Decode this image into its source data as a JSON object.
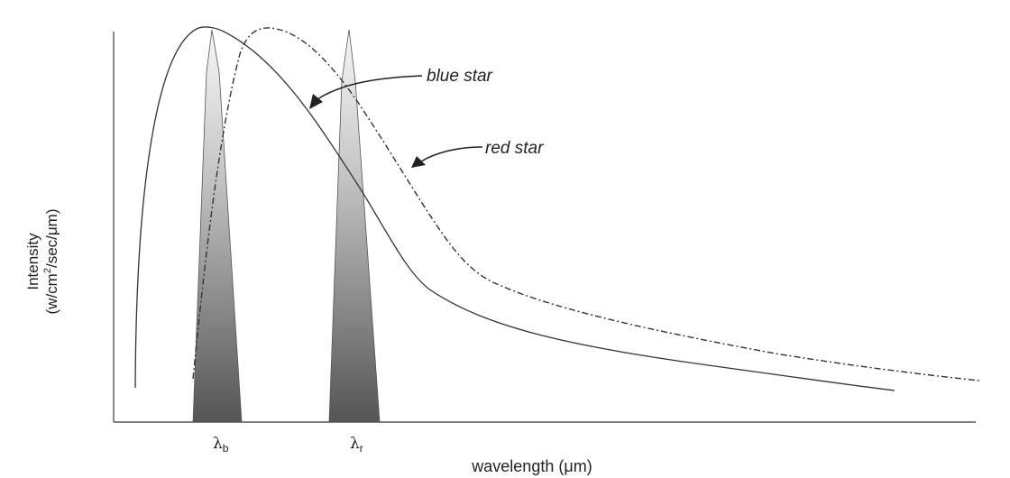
{
  "chart_data": {
    "type": "line",
    "title": "",
    "xlabel": "wavelength (μm)",
    "ylabel": {
      "line1": "Intensity",
      "line2_prefix": "(w/cm",
      "line2_sup": "2",
      "line2_suffix": "/sec/μm)"
    },
    "grid": false,
    "x_markers": [
      {
        "symbol": "λ",
        "subscript": "b"
      },
      {
        "symbol": "λ",
        "subscript": "r"
      }
    ],
    "annotations": {
      "blue": "blue star",
      "red": "red star"
    },
    "colors": {
      "axis": "#555555",
      "curve": "#333333",
      "filter_top": "#f7f7f7",
      "filter_bottom": "#555555"
    }
  }
}
